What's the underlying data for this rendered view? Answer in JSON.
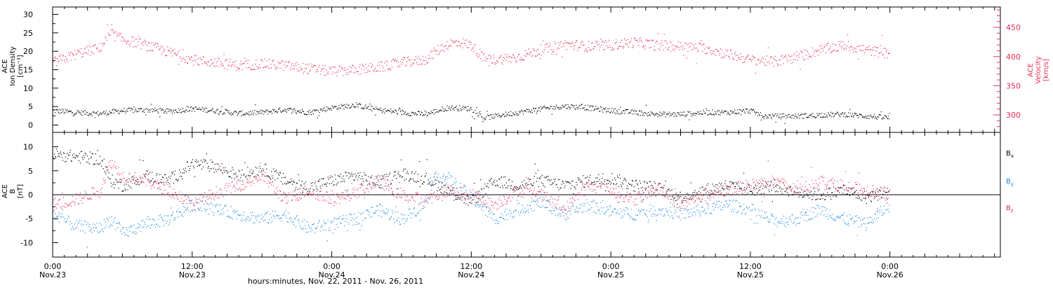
{
  "colors": {
    "black": "#000000",
    "pink": "#e8305a",
    "blue": "#1e88e5",
    "axis": "#000000"
  },
  "x_axis": {
    "title": "hours:minutes, Nov. 22, 2011 - Nov. 26, 2011",
    "range_hours": [
      0,
      81.5
    ],
    "ticks": [
      {
        "hour": 0,
        "time": "0:00",
        "date": "Nov.23"
      },
      {
        "hour": 12,
        "time": "12:00",
        "date": "Nov.23"
      },
      {
        "hour": 24,
        "time": "0:00",
        "date": "Nov.24"
      },
      {
        "hour": 36,
        "time": "12:00",
        "date": "Nov.24"
      },
      {
        "hour": 48,
        "time": "0:00",
        "date": "Nov.25"
      },
      {
        "hour": 60,
        "time": "12:00",
        "date": "Nov.25"
      },
      {
        "hour": 72,
        "time": "0:00",
        "date": "Nov.26"
      }
    ]
  },
  "chart_data": [
    {
      "type": "scatter",
      "panel": "top",
      "left_axis": {
        "label_lines": [
          "ACE",
          "Ion Density",
          "[cm⁻³]"
        ],
        "ylim": [
          -2,
          32
        ],
        "ticks": [
          0,
          5,
          10,
          15,
          20,
          25,
          30
        ]
      },
      "right_axis": {
        "label_lines": [
          "ACE",
          "Velocity",
          "[km/s]"
        ],
        "ylim": [
          270,
          485
        ],
        "ticks": [
          300,
          350,
          400,
          450
        ]
      },
      "series": [
        {
          "color": "black",
          "axis": "left",
          "points": [
            [
              0,
              4
            ],
            [
              2,
              3.5
            ],
            [
              4,
              3.2
            ],
            [
              6,
              4
            ],
            [
              8,
              4.2
            ],
            [
              10,
              3.8
            ],
            [
              12,
              4.5
            ],
            [
              14,
              4
            ],
            [
              16,
              3.2
            ],
            [
              18,
              3.5
            ],
            [
              20,
              4.3
            ],
            [
              22,
              3.5
            ],
            [
              24,
              4.8
            ],
            [
              26,
              5.5
            ],
            [
              28,
              4.2
            ],
            [
              30,
              3.5
            ],
            [
              32,
              3
            ],
            [
              34,
              4.8
            ],
            [
              36,
              4.5
            ],
            [
              37,
              2
            ],
            [
              38,
              2.5
            ],
            [
              40,
              3.5
            ],
            [
              42,
              4.5
            ],
            [
              44,
              5.2
            ],
            [
              46,
              4.8
            ],
            [
              48,
              4
            ],
            [
              50,
              3.5
            ],
            [
              52,
              3
            ],
            [
              54,
              3
            ],
            [
              56,
              3.5
            ],
            [
              58,
              3.5
            ],
            [
              60,
              4
            ],
            [
              61,
              2.5
            ],
            [
              64,
              2.5
            ],
            [
              66,
              2.8
            ],
            [
              68,
              3
            ],
            [
              70,
              2.5
            ],
            [
              72,
              2
            ]
          ]
        },
        {
          "color": "pink",
          "axis": "right",
          "points": [
            [
              0,
              390
            ],
            [
              2,
              405
            ],
            [
              4,
              415
            ],
            [
              5,
              440
            ],
            [
              6,
              430
            ],
            [
              8,
              420
            ],
            [
              10,
              408
            ],
            [
              12,
              395
            ],
            [
              14,
              390
            ],
            [
              16,
              385
            ],
            [
              18,
              388
            ],
            [
              20,
              385
            ],
            [
              22,
              380
            ],
            [
              24,
              375
            ],
            [
              26,
              378
            ],
            [
              28,
              382
            ],
            [
              30,
              390
            ],
            [
              32,
              395
            ],
            [
              33,
              410
            ],
            [
              34,
              422
            ],
            [
              35,
              425
            ],
            [
              36,
              420
            ],
            [
              37,
              398
            ],
            [
              38,
              395
            ],
            [
              40,
              400
            ],
            [
              42,
              412
            ],
            [
              44,
              422
            ],
            [
              46,
              418
            ],
            [
              48,
              420
            ],
            [
              50,
              425
            ],
            [
              52,
              420
            ],
            [
              54,
              418
            ],
            [
              56,
              415
            ],
            [
              58,
              405
            ],
            [
              60,
              395
            ],
            [
              62,
              392
            ],
            [
              64,
              400
            ],
            [
              66,
              412
            ],
            [
              68,
              420
            ],
            [
              70,
              412
            ],
            [
              72,
              405
            ]
          ]
        }
      ]
    },
    {
      "type": "scatter",
      "panel": "bottom",
      "left_axis": {
        "label_lines": [
          "ACE",
          "B",
          "[nT]"
        ],
        "ylim": [
          -13,
          13
        ],
        "ticks": [
          -10,
          -5,
          0,
          5,
          10
        ]
      },
      "zero_line": true,
      "series": [
        {
          "name": "Bx",
          "legend_main": "B",
          "legend_sub": "x",
          "color": "black",
          "points": [
            [
              0,
              8.5
            ],
            [
              2,
              8
            ],
            [
              4,
              7.5
            ],
            [
              5,
              3
            ],
            [
              6,
              2
            ],
            [
              8,
              4
            ],
            [
              10,
              3
            ],
            [
              12,
              6.5
            ],
            [
              14,
              6
            ],
            [
              16,
              4
            ],
            [
              18,
              5.5
            ],
            [
              20,
              3
            ],
            [
              22,
              1.5
            ],
            [
              24,
              3
            ],
            [
              26,
              4
            ],
            [
              28,
              2.5
            ],
            [
              30,
              4.5
            ],
            [
              32,
              3.5
            ],
            [
              34,
              1
            ],
            [
              36,
              -1.5
            ],
            [
              38,
              3
            ],
            [
              40,
              2
            ],
            [
              42,
              3
            ],
            [
              44,
              2
            ],
            [
              46,
              3
            ],
            [
              48,
              3.5
            ],
            [
              50,
              2
            ],
            [
              52,
              1.5
            ],
            [
              54,
              -0.5
            ],
            [
              56,
              1
            ],
            [
              58,
              2
            ],
            [
              60,
              1
            ],
            [
              62,
              2
            ],
            [
              64,
              0.5
            ],
            [
              66,
              0
            ],
            [
              68,
              1
            ],
            [
              70,
              -0.5
            ],
            [
              72,
              1
            ]
          ]
        },
        {
          "name": "By",
          "legend_main": "B",
          "legend_sub": "y",
          "color": "blue",
          "points": [
            [
              0,
              -4
            ],
            [
              2,
              -6.5
            ],
            [
              4,
              -7
            ],
            [
              5,
              -5
            ],
            [
              6,
              -8
            ],
            [
              8,
              -6
            ],
            [
              10,
              -5
            ],
            [
              12,
              -2
            ],
            [
              14,
              -3
            ],
            [
              16,
              -4
            ],
            [
              18,
              -5
            ],
            [
              20,
              -4
            ],
            [
              22,
              -7
            ],
            [
              24,
              -6
            ],
            [
              26,
              -5
            ],
            [
              28,
              -3
            ],
            [
              30,
              -5
            ],
            [
              32,
              -2
            ],
            [
              33,
              4
            ],
            [
              34,
              3.5
            ],
            [
              36,
              -0.5
            ],
            [
              38,
              -5
            ],
            [
              40,
              -3
            ],
            [
              42,
              -1.5
            ],
            [
              44,
              -4
            ],
            [
              46,
              -2
            ],
            [
              48,
              -3.5
            ],
            [
              50,
              -4
            ],
            [
              52,
              -3
            ],
            [
              54,
              -4
            ],
            [
              56,
              -3
            ],
            [
              58,
              -2
            ],
            [
              60,
              -3
            ],
            [
              62,
              -5.5
            ],
            [
              64,
              -5
            ],
            [
              66,
              -3
            ],
            [
              68,
              -5
            ],
            [
              70,
              -6
            ],
            [
              72,
              -2
            ]
          ]
        },
        {
          "name": "Bz",
          "legend_main": "B",
          "legend_sub": "z",
          "color": "pink",
          "points": [
            [
              0,
              -2
            ],
            [
              2,
              -1
            ],
            [
              4,
              1
            ],
            [
              5,
              7
            ],
            [
              6,
              4
            ],
            [
              8,
              3
            ],
            [
              10,
              1
            ],
            [
              12,
              -2
            ],
            [
              14,
              0.5
            ],
            [
              16,
              2
            ],
            [
              18,
              4
            ],
            [
              20,
              -1
            ],
            [
              22,
              1
            ],
            [
              24,
              -1
            ],
            [
              26,
              0.5
            ],
            [
              28,
              3
            ],
            [
              30,
              0
            ],
            [
              32,
              -1
            ],
            [
              34,
              1
            ],
            [
              36,
              0
            ],
            [
              38,
              -2
            ],
            [
              40,
              1
            ],
            [
              42,
              0
            ],
            [
              44,
              -3
            ],
            [
              46,
              2
            ],
            [
              48,
              1
            ],
            [
              50,
              -1
            ],
            [
              52,
              1.5
            ],
            [
              54,
              -2
            ],
            [
              56,
              0
            ],
            [
              58,
              1
            ],
            [
              60,
              2
            ],
            [
              62,
              3
            ],
            [
              64,
              1
            ],
            [
              66,
              3
            ],
            [
              68,
              2
            ],
            [
              70,
              1
            ],
            [
              72,
              0
            ]
          ]
        }
      ]
    }
  ]
}
